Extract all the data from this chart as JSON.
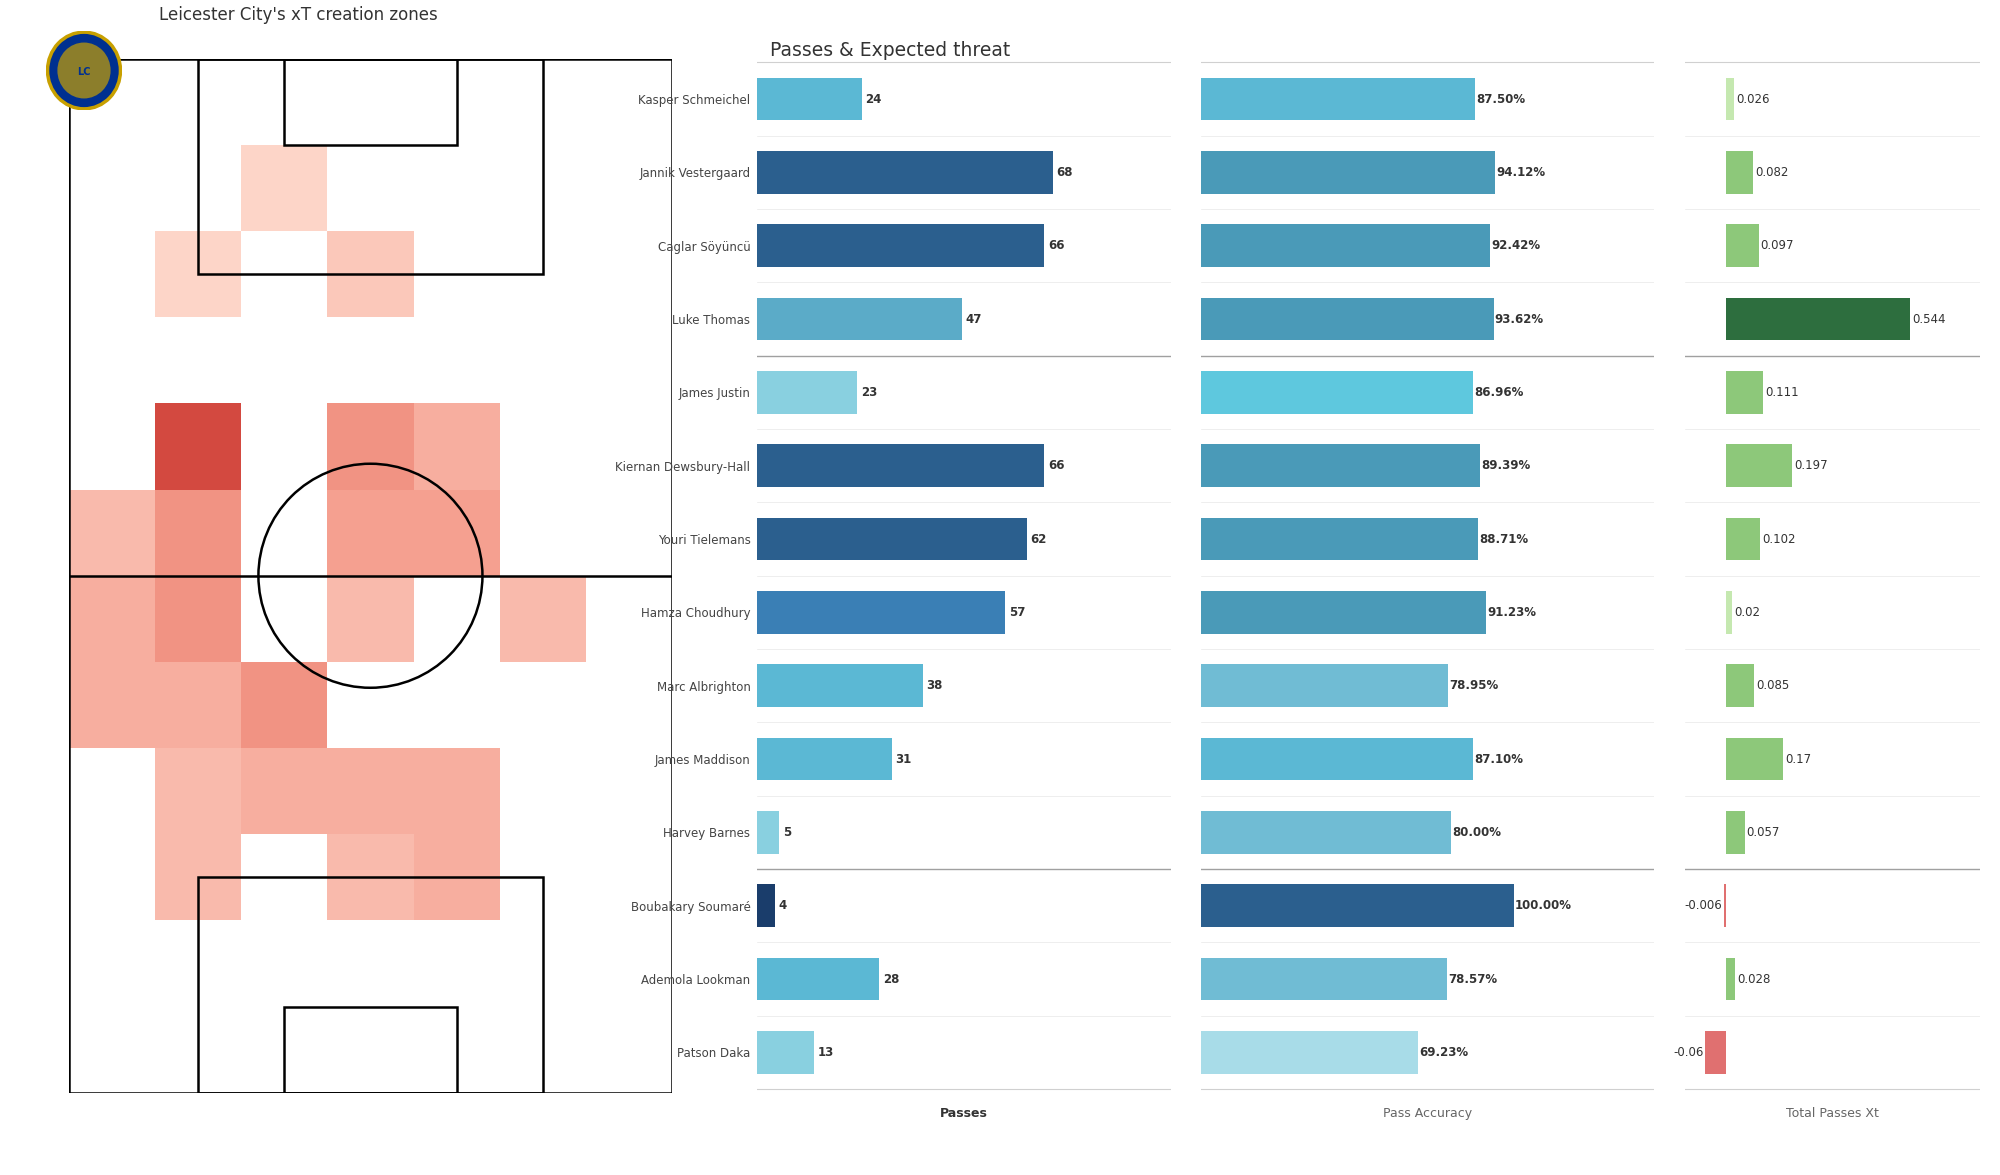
{
  "title_heatmap": "Leicester City's xT creation zones",
  "title_bars": "Passes & Expected threat",
  "players": [
    "Kasper Schmeichel",
    "Jannik Vestergaard",
    "Caglar Söyüncü",
    "Luke Thomas",
    "James Justin",
    "Kiernan Dewsbury-Hall",
    "Youri Tielemans",
    "Hamza Choudhury",
    "Marc Albrighton",
    "James Maddison",
    "Harvey Barnes",
    "Boubakary Soumaré",
    "Ademola Lookman",
    "Patson Daka"
  ],
  "passes": [
    24,
    68,
    66,
    47,
    23,
    66,
    62,
    57,
    38,
    31,
    5,
    4,
    28,
    13
  ],
  "pass_accuracy": [
    87.5,
    94.12,
    92.42,
    93.62,
    86.96,
    89.39,
    88.71,
    91.23,
    78.95,
    87.1,
    80.0,
    100.0,
    78.57,
    69.23
  ],
  "total_passes_xt": [
    0.026,
    0.082,
    0.097,
    0.544,
    0.111,
    0.197,
    0.102,
    0.02,
    0.085,
    0.17,
    0.057,
    -0.006,
    0.028,
    -0.06
  ],
  "passes_bar_colors": [
    "#5bb8d4",
    "#2b5f8e",
    "#2b5f8e",
    "#5babc8",
    "#89d0e0",
    "#2b5f8e",
    "#2b5f8e",
    "#3a7fb5",
    "#5bb8d4",
    "#5bb8d4",
    "#89d0e0",
    "#1a3d6b",
    "#5bb8d4",
    "#89d0e0"
  ],
  "accuracy_bar_colors": [
    "#5bb8d4",
    "#4a9ab8",
    "#4a9ab8",
    "#4a9ab8",
    "#5ec8de",
    "#4a9ab8",
    "#4a9ab8",
    "#4a9ab8",
    "#70bcd4",
    "#5bb8d4",
    "#70bcd4",
    "#2b5f8e",
    "#70bcd4",
    "#a8dce8"
  ],
  "xt_bar_colors": [
    "#c5e8b0",
    "#8dc87a",
    "#8dc87a",
    "#2d6e3e",
    "#8dc87a",
    "#8dc87a",
    "#8dc87a",
    "#c5e8b0",
    "#8dc87a",
    "#8dc87a",
    "#8dc87a",
    "#e07070",
    "#8dc87a",
    "#e07070"
  ],
  "section_dividers": [
    4,
    11
  ],
  "bg_color": "#f7f7f7",
  "heatmap_cols": 7,
  "heatmap_rows": 12,
  "heatmap_values": [
    [
      0,
      0,
      0,
      0,
      0,
      0,
      0
    ],
    [
      0,
      0,
      0.15,
      0,
      0,
      0,
      0
    ],
    [
      0,
      0.15,
      0,
      0.2,
      0,
      0,
      0
    ],
    [
      0,
      0,
      0,
      0,
      0,
      0,
      0
    ],
    [
      0,
      0.7,
      0,
      0.4,
      0.3,
      0,
      0
    ],
    [
      0.25,
      0.4,
      0,
      0.35,
      0.35,
      0,
      0
    ],
    [
      0.3,
      0.4,
      0,
      0.25,
      0,
      0.25,
      0
    ],
    [
      0.3,
      0.3,
      0.4,
      0,
      0,
      0,
      0
    ],
    [
      0,
      0.25,
      0.3,
      0.3,
      0.3,
      0,
      0
    ],
    [
      0,
      0.25,
      0,
      0.25,
      0.3,
      0,
      0
    ],
    [
      0,
      0,
      0,
      0,
      0,
      0,
      0
    ],
    [
      0,
      0,
      0,
      0,
      0,
      0,
      0
    ]
  ]
}
